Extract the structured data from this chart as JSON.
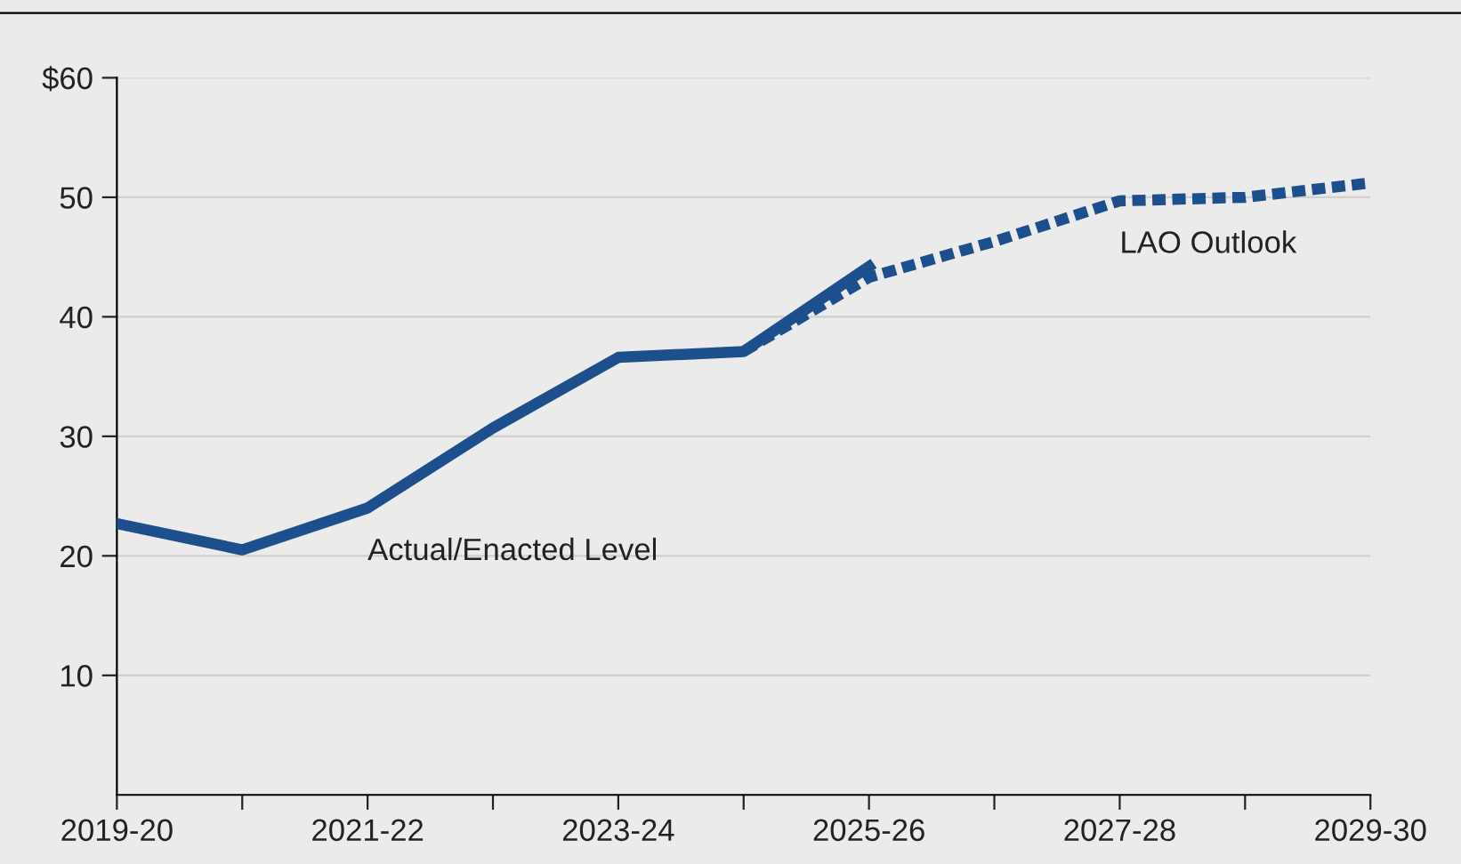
{
  "chart_data": {
    "type": "line",
    "categories": [
      "2019-20",
      null,
      "2021-22",
      null,
      "2023-24",
      null,
      "2025-26",
      null,
      "2027-28",
      null,
      "2029-30"
    ],
    "series": [
      {
        "name": "Actual/Enacted Level",
        "color": "#1c4f8c",
        "line_style": "solid",
        "values": [
          22.7,
          20.5,
          24.0,
          30.7,
          36.6,
          37.1,
          44.2,
          null,
          null,
          null,
          null
        ]
      },
      {
        "name": "LAO Outlook",
        "color": "#1c4f8c",
        "line_style": "dashed",
        "values": [
          null,
          null,
          null,
          null,
          null,
          37.1,
          43.3,
          46.3,
          49.7,
          50.0,
          51.2
        ]
      }
    ],
    "ylim": [
      0,
      60
    ],
    "yticks": [
      10,
      20,
      30,
      40,
      50,
      {
        "value": 60,
        "label": "$60"
      }
    ],
    "grid": "y",
    "legend": false,
    "marker": "none"
  }
}
